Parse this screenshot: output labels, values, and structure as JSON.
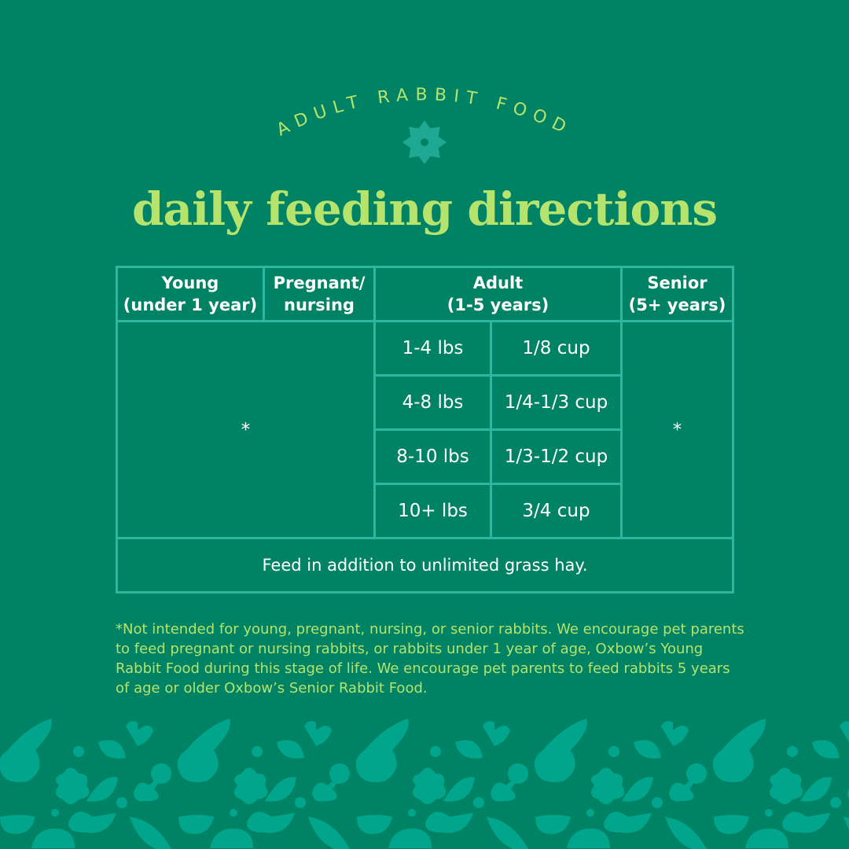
{
  "eyebrow": "ADULT RABBIT FOOD",
  "title": "daily feeding directions",
  "colors": {
    "background": "#008264",
    "accent": "#b5e36c",
    "lines": "#2bb7a0",
    "pattern": "#00a58c"
  },
  "table": {
    "headers": [
      {
        "line1": "Young",
        "line2": "(under 1 year)"
      },
      {
        "line1": "Pregnant/",
        "line2": "nursing"
      },
      {
        "line1": "Adult",
        "line2": "(1-5 years)"
      },
      {
        "line1": "Senior",
        "line2": "(5+ years)"
      }
    ],
    "young_pregnant_value": "*",
    "senior_value": "*",
    "rows": [
      {
        "weight": "1-4 lbs",
        "amount": "1/8 cup"
      },
      {
        "weight": "4-8 lbs",
        "amount": "1/4-1/3 cup"
      },
      {
        "weight": "8-10 lbs",
        "amount": "1/3-1/2 cup"
      },
      {
        "weight": "10+ lbs",
        "amount": "3/4 cup"
      }
    ],
    "note": "Feed in addition to unlimited grass hay."
  },
  "footnote": "*Not intended for young, pregnant, nursing, or senior rabbits. We encourage pet parents to feed pregnant or nursing rabbits, or rabbits under 1 year of age, Oxbow’s Young Rabbit Food during this stage of life. We encourage pet parents to feed rabbits 5 years of age or older Oxbow’s Senior Rabbit Food."
}
